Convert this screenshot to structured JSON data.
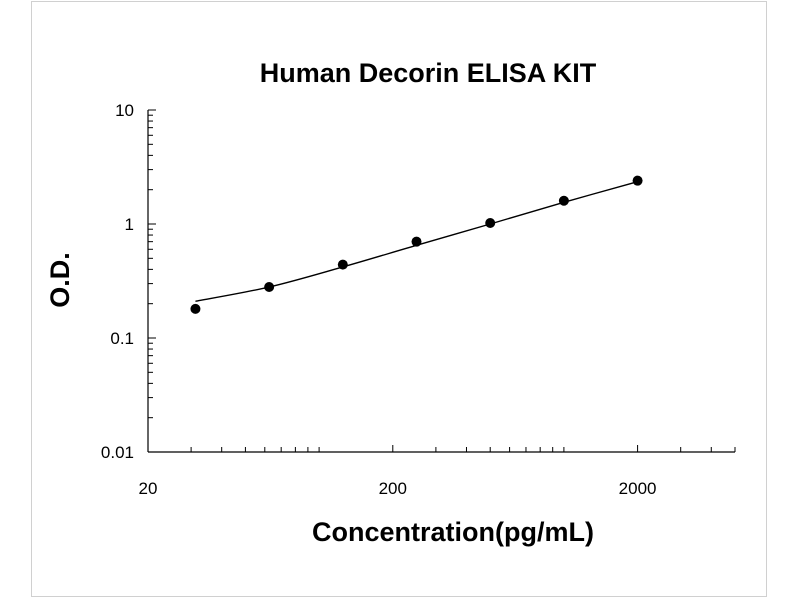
{
  "chart_data": {
    "type": "scatter",
    "title": "Human Decorin ELISA KIT",
    "xlabel": "Concentration(pg/mL)",
    "ylabel": "O.D.",
    "x_scale": "log",
    "y_scale": "log",
    "xlim": [
      20,
      5000
    ],
    "ylim": [
      0.01,
      10
    ],
    "x_ticks": [
      20,
      200,
      2000
    ],
    "x_tick_labels": [
      "20",
      "200",
      "2000"
    ],
    "y_ticks": [
      0.01,
      0.1,
      1,
      10
    ],
    "y_tick_labels": [
      "0.01",
      "0.1",
      "1",
      "10"
    ],
    "grid": false,
    "legend": "none",
    "marker_color": "#000000",
    "line_color": "#000000",
    "series": [
      {
        "points": [
          {
            "x": 31.25,
            "y": 0.18
          },
          {
            "x": 62.5,
            "y": 0.28
          },
          {
            "x": 125,
            "y": 0.44
          },
          {
            "x": 250,
            "y": 0.7
          },
          {
            "x": 500,
            "y": 1.02
          },
          {
            "x": 1000,
            "y": 1.6
          },
          {
            "x": 2000,
            "y": 2.4
          }
        ],
        "fit_curve": [
          {
            "x": 31.25,
            "y": 0.21
          },
          {
            "x": 62.5,
            "y": 0.28
          },
          {
            "x": 125,
            "y": 0.42
          },
          {
            "x": 250,
            "y": 0.65
          },
          {
            "x": 500,
            "y": 1.0
          },
          {
            "x": 1000,
            "y": 1.55
          },
          {
            "x": 2000,
            "y": 2.35
          }
        ]
      }
    ]
  }
}
